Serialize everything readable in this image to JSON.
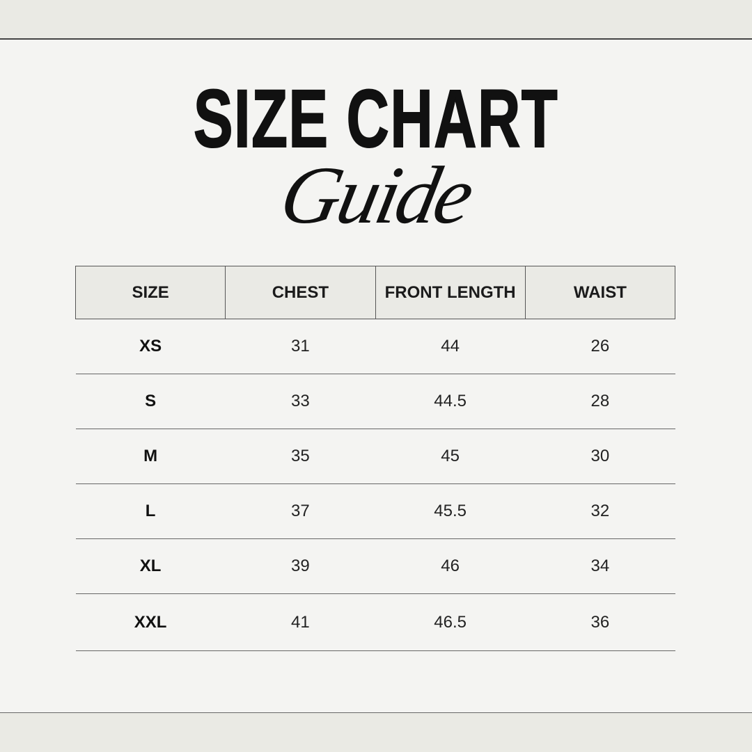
{
  "header": {
    "title": "SIZE CHART",
    "subtitle": "Guide"
  },
  "table": {
    "columns": [
      "SIZE",
      "CHEST",
      "FRONT LENGTH",
      "WAIST"
    ],
    "rows": [
      [
        "XS",
        "31",
        "44",
        "26"
      ],
      [
        "S",
        "33",
        "44.5",
        "28"
      ],
      [
        "M",
        "35",
        "45",
        "30"
      ],
      [
        "L",
        "37",
        "45.5",
        "32"
      ],
      [
        "XL",
        "39",
        "46",
        "34"
      ],
      [
        "XXL",
        "41",
        "46.5",
        "36"
      ]
    ]
  },
  "colors": {
    "background": "#f4f4f2",
    "band": "#eaeae4",
    "header_fill": "#eaeae5",
    "text": "#1b1b1b"
  }
}
